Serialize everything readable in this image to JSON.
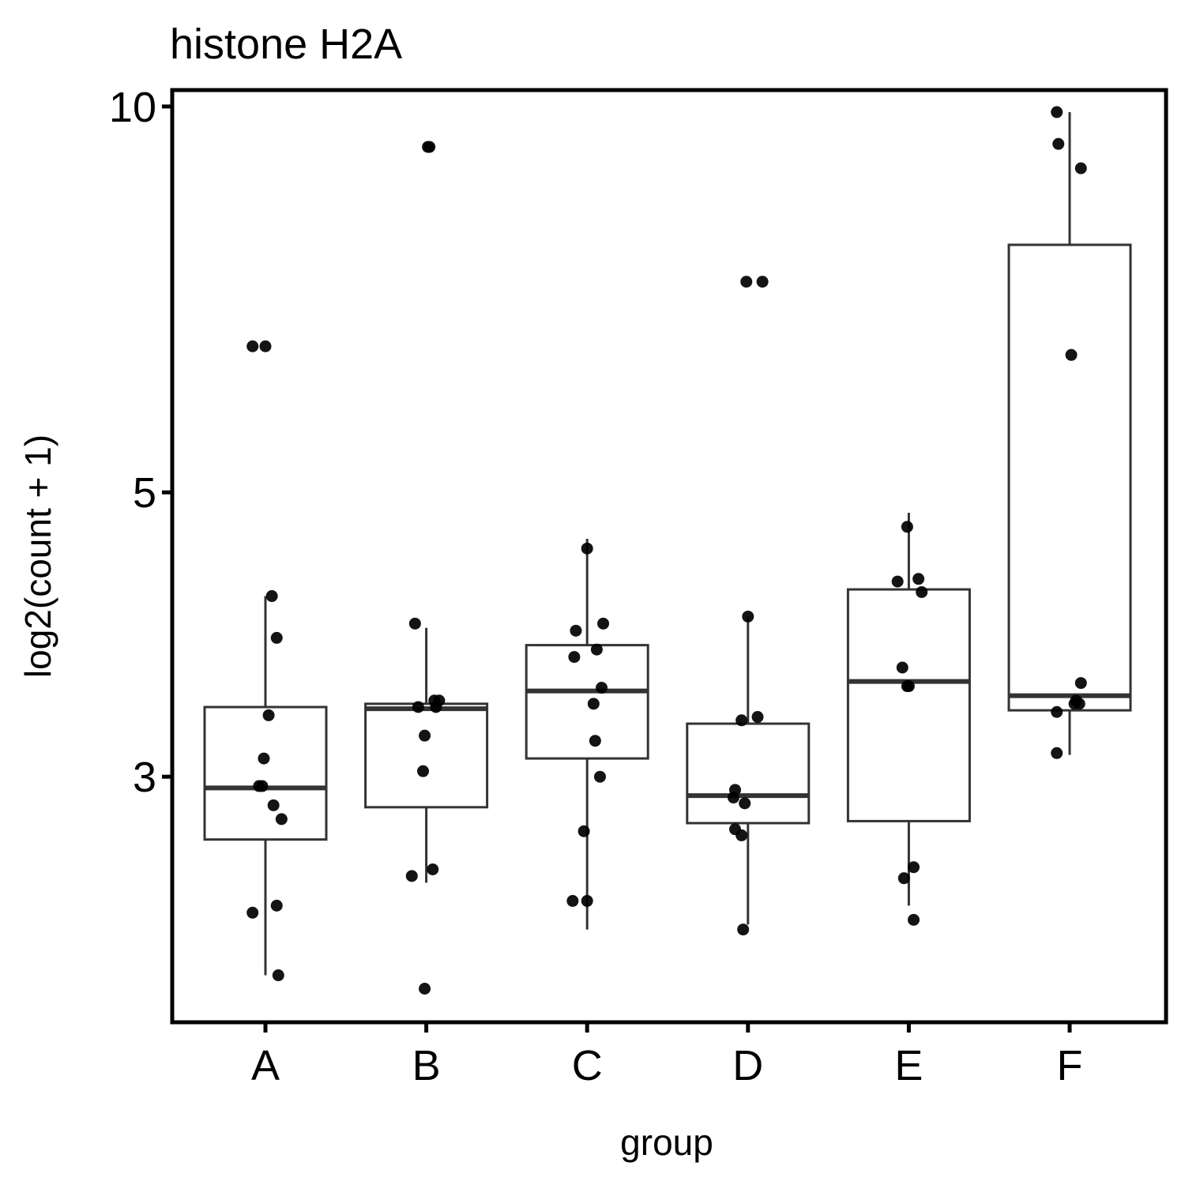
{
  "chart_data": {
    "type": "boxplot",
    "title": "histone H2A",
    "xlabel": "group",
    "ylabel": "log2(count + 1)",
    "y_scale": "log",
    "ylim": [
      1.93,
      10.3
    ],
    "y_ticks": [
      3,
      5,
      10
    ],
    "y_tick_labels": [
      "3",
      "5",
      "10"
    ],
    "grid": false,
    "categories": [
      "A",
      "B",
      "C",
      "D",
      "E",
      "F"
    ],
    "boxes": [
      {
        "q1": 2.68,
        "median": 2.94,
        "q3": 3.4,
        "whisker_low": 2.1,
        "whisker_high": 4.15
      },
      {
        "q1": 2.84,
        "median": 3.39,
        "q3": 3.42,
        "whisker_low": 2.48,
        "whisker_high": 3.92
      },
      {
        "q1": 3.1,
        "median": 3.5,
        "q3": 3.8,
        "whisker_low": 2.28,
        "whisker_high": 4.6
      },
      {
        "q1": 2.76,
        "median": 2.9,
        "q3": 3.3,
        "whisker_low": 2.3,
        "whisker_high": 4.0
      },
      {
        "q1": 2.77,
        "median": 3.56,
        "q3": 4.2,
        "whisker_low": 2.38,
        "whisker_high": 4.82
      },
      {
        "q1": 3.38,
        "median": 3.47,
        "q3": 7.8,
        "whisker_low": 3.12,
        "whisker_high": 9.9
      }
    ],
    "points": [
      {
        "group": 0,
        "jitter": -0.08,
        "y": 6.5
      },
      {
        "group": 0,
        "jitter": 0.0,
        "y": 6.5
      },
      {
        "group": 0,
        "jitter": 0.04,
        "y": 4.15
      },
      {
        "group": 0,
        "jitter": 0.07,
        "y": 3.85
      },
      {
        "group": 0,
        "jitter": 0.02,
        "y": 3.35
      },
      {
        "group": 0,
        "jitter": -0.01,
        "y": 3.1
      },
      {
        "group": 0,
        "jitter": -0.04,
        "y": 2.95
      },
      {
        "group": 0,
        "jitter": -0.02,
        "y": 2.95
      },
      {
        "group": 0,
        "jitter": 0.05,
        "y": 2.85
      },
      {
        "group": 0,
        "jitter": 0.1,
        "y": 2.78
      },
      {
        "group": 0,
        "jitter": 0.07,
        "y": 2.38
      },
      {
        "group": 0,
        "jitter": -0.08,
        "y": 2.35
      },
      {
        "group": 0,
        "jitter": 0.08,
        "y": 2.1
      },
      {
        "group": 1,
        "jitter": 0.01,
        "y": 9.3
      },
      {
        "group": 1,
        "jitter": 0.02,
        "y": 9.3
      },
      {
        "group": 1,
        "jitter": -0.07,
        "y": 3.95
      },
      {
        "group": 1,
        "jitter": -0.05,
        "y": 3.4
      },
      {
        "group": 1,
        "jitter": 0.05,
        "y": 3.44
      },
      {
        "group": 1,
        "jitter": 0.08,
        "y": 3.44
      },
      {
        "group": 1,
        "jitter": 0.06,
        "y": 3.4
      },
      {
        "group": 1,
        "jitter": -0.01,
        "y": 3.23
      },
      {
        "group": 1,
        "jitter": -0.02,
        "y": 3.03
      },
      {
        "group": 1,
        "jitter": 0.04,
        "y": 2.54
      },
      {
        "group": 1,
        "jitter": -0.09,
        "y": 2.51
      },
      {
        "group": 1,
        "jitter": -0.01,
        "y": 2.05
      },
      {
        "group": 2,
        "jitter": 0.0,
        "y": 4.52
      },
      {
        "group": 2,
        "jitter": 0.1,
        "y": 3.95
      },
      {
        "group": 2,
        "jitter": -0.07,
        "y": 3.9
      },
      {
        "group": 2,
        "jitter": 0.06,
        "y": 3.77
      },
      {
        "group": 2,
        "jitter": -0.08,
        "y": 3.72
      },
      {
        "group": 2,
        "jitter": 0.09,
        "y": 3.52
      },
      {
        "group": 2,
        "jitter": 0.04,
        "y": 3.42
      },
      {
        "group": 2,
        "jitter": 0.05,
        "y": 3.2
      },
      {
        "group": 2,
        "jitter": 0.08,
        "y": 3.0
      },
      {
        "group": 2,
        "jitter": -0.02,
        "y": 2.72
      },
      {
        "group": 2,
        "jitter": -0.09,
        "y": 2.4
      },
      {
        "group": 2,
        "jitter": 0.0,
        "y": 2.4
      },
      {
        "group": 3,
        "jitter": -0.01,
        "y": 7.3
      },
      {
        "group": 3,
        "jitter": 0.09,
        "y": 7.3
      },
      {
        "group": 3,
        "jitter": 0.0,
        "y": 4.0
      },
      {
        "group": 3,
        "jitter": -0.04,
        "y": 3.32
      },
      {
        "group": 3,
        "jitter": 0.06,
        "y": 3.34
      },
      {
        "group": 3,
        "jitter": -0.08,
        "y": 2.93
      },
      {
        "group": 3,
        "jitter": -0.09,
        "y": 2.89
      },
      {
        "group": 3,
        "jitter": -0.02,
        "y": 2.86
      },
      {
        "group": 3,
        "jitter": -0.08,
        "y": 2.73
      },
      {
        "group": 3,
        "jitter": -0.04,
        "y": 2.7
      },
      {
        "group": 3,
        "jitter": -0.03,
        "y": 2.28
      },
      {
        "group": 4,
        "jitter": -0.01,
        "y": 4.7
      },
      {
        "group": 4,
        "jitter": 0.06,
        "y": 4.28
      },
      {
        "group": 4,
        "jitter": -0.07,
        "y": 4.26
      },
      {
        "group": 4,
        "jitter": 0.08,
        "y": 4.18
      },
      {
        "group": 4,
        "jitter": -0.04,
        "y": 3.65
      },
      {
        "group": 4,
        "jitter": -0.01,
        "y": 3.53
      },
      {
        "group": 4,
        "jitter": 0.0,
        "y": 3.53
      },
      {
        "group": 4,
        "jitter": 0.03,
        "y": 2.55
      },
      {
        "group": 4,
        "jitter": -0.03,
        "y": 2.5
      },
      {
        "group": 4,
        "jitter": 0.03,
        "y": 2.32
      },
      {
        "group": 5,
        "jitter": -0.08,
        "y": 9.9
      },
      {
        "group": 5,
        "jitter": -0.07,
        "y": 9.35
      },
      {
        "group": 5,
        "jitter": 0.07,
        "y": 8.95
      },
      {
        "group": 5,
        "jitter": 0.01,
        "y": 6.4
      },
      {
        "group": 5,
        "jitter": 0.07,
        "y": 3.55
      },
      {
        "group": 5,
        "jitter": 0.04,
        "y": 3.44
      },
      {
        "group": 5,
        "jitter": 0.06,
        "y": 3.42
      },
      {
        "group": 5,
        "jitter": 0.03,
        "y": 3.42
      },
      {
        "group": 5,
        "jitter": -0.08,
        "y": 3.37
      },
      {
        "group": 5,
        "jitter": -0.08,
        "y": 3.13
      }
    ]
  }
}
